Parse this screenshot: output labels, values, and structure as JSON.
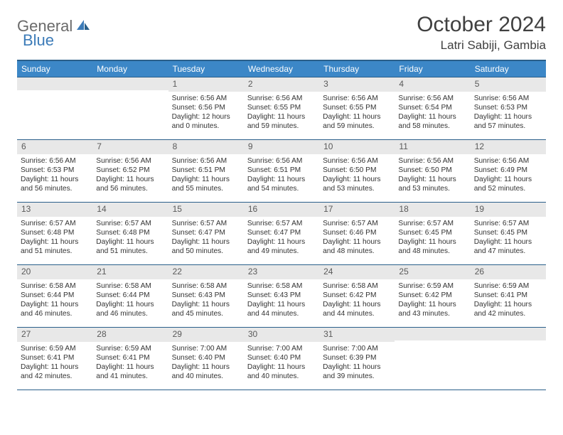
{
  "logo": {
    "part1": "General",
    "part2": "Blue"
  },
  "title": "October 2024",
  "location": "Latri Sabiji, Gambia",
  "colors": {
    "header_bg": "#3c87c7",
    "header_border": "#2a5f8a",
    "daynum_bg": "#e8e8e8",
    "text": "#333333",
    "logo_gray": "#6a6a6a",
    "logo_blue": "#3c7bb8"
  },
  "day_headers": [
    "Sunday",
    "Monday",
    "Tuesday",
    "Wednesday",
    "Thursday",
    "Friday",
    "Saturday"
  ],
  "weeks": [
    [
      null,
      null,
      {
        "n": "1",
        "sr": "6:56 AM",
        "ss": "6:56 PM",
        "dl": "12 hours and 0 minutes."
      },
      {
        "n": "2",
        "sr": "6:56 AM",
        "ss": "6:55 PM",
        "dl": "11 hours and 59 minutes."
      },
      {
        "n": "3",
        "sr": "6:56 AM",
        "ss": "6:55 PM",
        "dl": "11 hours and 59 minutes."
      },
      {
        "n": "4",
        "sr": "6:56 AM",
        "ss": "6:54 PM",
        "dl": "11 hours and 58 minutes."
      },
      {
        "n": "5",
        "sr": "6:56 AM",
        "ss": "6:53 PM",
        "dl": "11 hours and 57 minutes."
      }
    ],
    [
      {
        "n": "6",
        "sr": "6:56 AM",
        "ss": "6:53 PM",
        "dl": "11 hours and 56 minutes."
      },
      {
        "n": "7",
        "sr": "6:56 AM",
        "ss": "6:52 PM",
        "dl": "11 hours and 56 minutes."
      },
      {
        "n": "8",
        "sr": "6:56 AM",
        "ss": "6:51 PM",
        "dl": "11 hours and 55 minutes."
      },
      {
        "n": "9",
        "sr": "6:56 AM",
        "ss": "6:51 PM",
        "dl": "11 hours and 54 minutes."
      },
      {
        "n": "10",
        "sr": "6:56 AM",
        "ss": "6:50 PM",
        "dl": "11 hours and 53 minutes."
      },
      {
        "n": "11",
        "sr": "6:56 AM",
        "ss": "6:50 PM",
        "dl": "11 hours and 53 minutes."
      },
      {
        "n": "12",
        "sr": "6:56 AM",
        "ss": "6:49 PM",
        "dl": "11 hours and 52 minutes."
      }
    ],
    [
      {
        "n": "13",
        "sr": "6:57 AM",
        "ss": "6:48 PM",
        "dl": "11 hours and 51 minutes."
      },
      {
        "n": "14",
        "sr": "6:57 AM",
        "ss": "6:48 PM",
        "dl": "11 hours and 51 minutes."
      },
      {
        "n": "15",
        "sr": "6:57 AM",
        "ss": "6:47 PM",
        "dl": "11 hours and 50 minutes."
      },
      {
        "n": "16",
        "sr": "6:57 AM",
        "ss": "6:47 PM",
        "dl": "11 hours and 49 minutes."
      },
      {
        "n": "17",
        "sr": "6:57 AM",
        "ss": "6:46 PM",
        "dl": "11 hours and 48 minutes."
      },
      {
        "n": "18",
        "sr": "6:57 AM",
        "ss": "6:45 PM",
        "dl": "11 hours and 48 minutes."
      },
      {
        "n": "19",
        "sr": "6:57 AM",
        "ss": "6:45 PM",
        "dl": "11 hours and 47 minutes."
      }
    ],
    [
      {
        "n": "20",
        "sr": "6:58 AM",
        "ss": "6:44 PM",
        "dl": "11 hours and 46 minutes."
      },
      {
        "n": "21",
        "sr": "6:58 AM",
        "ss": "6:44 PM",
        "dl": "11 hours and 46 minutes."
      },
      {
        "n": "22",
        "sr": "6:58 AM",
        "ss": "6:43 PM",
        "dl": "11 hours and 45 minutes."
      },
      {
        "n": "23",
        "sr": "6:58 AM",
        "ss": "6:43 PM",
        "dl": "11 hours and 44 minutes."
      },
      {
        "n": "24",
        "sr": "6:58 AM",
        "ss": "6:42 PM",
        "dl": "11 hours and 44 minutes."
      },
      {
        "n": "25",
        "sr": "6:59 AM",
        "ss": "6:42 PM",
        "dl": "11 hours and 43 minutes."
      },
      {
        "n": "26",
        "sr": "6:59 AM",
        "ss": "6:41 PM",
        "dl": "11 hours and 42 minutes."
      }
    ],
    [
      {
        "n": "27",
        "sr": "6:59 AM",
        "ss": "6:41 PM",
        "dl": "11 hours and 42 minutes."
      },
      {
        "n": "28",
        "sr": "6:59 AM",
        "ss": "6:41 PM",
        "dl": "11 hours and 41 minutes."
      },
      {
        "n": "29",
        "sr": "7:00 AM",
        "ss": "6:40 PM",
        "dl": "11 hours and 40 minutes."
      },
      {
        "n": "30",
        "sr": "7:00 AM",
        "ss": "6:40 PM",
        "dl": "11 hours and 40 minutes."
      },
      {
        "n": "31",
        "sr": "7:00 AM",
        "ss": "6:39 PM",
        "dl": "11 hours and 39 minutes."
      },
      null,
      null
    ]
  ],
  "labels": {
    "sunrise": "Sunrise:",
    "sunset": "Sunset:",
    "daylight": "Daylight:"
  }
}
